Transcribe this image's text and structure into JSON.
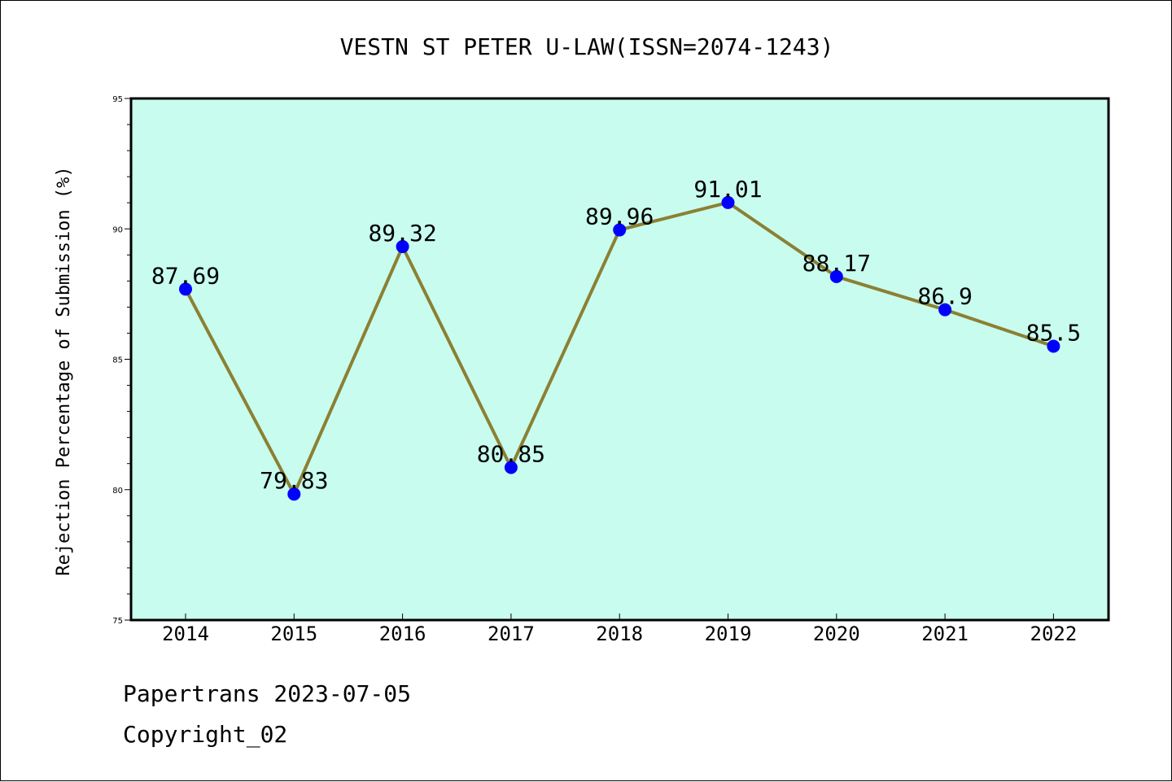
{
  "chart_data": {
    "type": "line",
    "title": "VESTN ST PETER U-LAW(ISSN=2074-1243)",
    "xlabel": "",
    "ylabel": "Rejection Percentage of Submission (%)",
    "categories": [
      "2014",
      "2015",
      "2016",
      "2017",
      "2018",
      "2019",
      "2020",
      "2021",
      "2022"
    ],
    "series": [
      {
        "values": [
          87.69,
          79.83,
          89.32,
          80.85,
          89.96,
          91.01,
          88.17,
          86.9,
          85.5
        ],
        "labels": [
          "87.69",
          "79.83",
          "89.32",
          "80.85",
          "89.96",
          "91.01",
          "88.17",
          "86.9",
          "85.5"
        ]
      }
    ],
    "ylim": [
      75,
      95
    ],
    "yticks": [
      "75",
      "80",
      "85",
      "90",
      "95"
    ],
    "grid": false,
    "legend": "none",
    "colors": {
      "plot_background": "#c8fcee",
      "line": "#8b8033",
      "marker": "#0000ff",
      "axis": "#000000"
    }
  },
  "footer": {
    "line1": "Papertrans 2023-07-05",
    "line2": "Copyright_02"
  }
}
